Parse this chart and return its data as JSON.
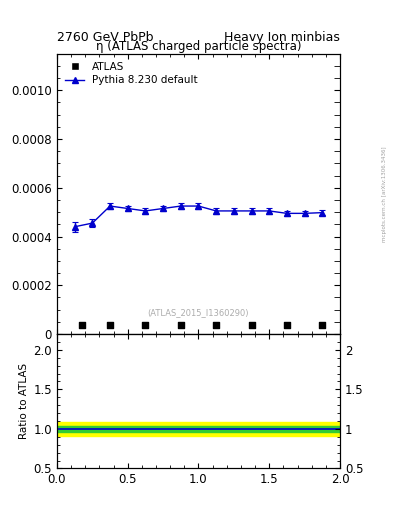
{
  "title_left": "2760 GeV PbPb",
  "title_right": "Heavy Ion minbias",
  "plot_title": "η (ATLAS charged particle spectra)",
  "watermark": "(ATLAS_2015_I1360290)",
  "side_label": "mcplots.cern.ch [arXiv:1306.3436]",
  "atlas_x": [
    0.175,
    0.375,
    0.625,
    0.875,
    1.125,
    1.375,
    1.625,
    1.875
  ],
  "atlas_y": [
    3.5e-05,
    3.5e-05,
    3.5e-05,
    3.5e-05,
    3.5e-05,
    3.5e-05,
    3.5e-05,
    3.5e-05
  ],
  "atlas_label": "ATLAS",
  "pythia_x": [
    0.125,
    0.25,
    0.375,
    0.5,
    0.625,
    0.75,
    0.875,
    1.0,
    1.125,
    1.25,
    1.375,
    1.5,
    1.625,
    1.75,
    1.875
  ],
  "pythia_y": [
    0.00044,
    0.000455,
    0.000525,
    0.000515,
    0.000505,
    0.000515,
    0.000525,
    0.000525,
    0.000505,
    0.000505,
    0.000505,
    0.000505,
    0.000495,
    0.000495,
    0.000498
  ],
  "pythia_yerr": [
    2e-05,
    1.5e-05,
    1.3e-05,
    1.2e-05,
    1.1e-05,
    1.1e-05,
    1.1e-05,
    1.1e-05,
    1.1e-05,
    1.1e-05,
    1.1e-05,
    1.1e-05,
    1.1e-05,
    1.1e-05,
    1.1e-05
  ],
  "pythia_label": "Pythia 8.230 default",
  "pythia_color": "#0000cc",
  "ratio_green_lo": 0.96,
  "ratio_green_hi": 1.04,
  "ratio_yellow_lo": 0.91,
  "ratio_yellow_hi": 1.09,
  "main_ylim": [
    0.0,
    0.00115
  ],
  "main_yticks": [
    0.0,
    0.0002,
    0.0004,
    0.0006,
    0.0008,
    0.001
  ],
  "ratio_ylim": [
    0.5,
    2.2
  ],
  "ratio_yticks": [
    0.5,
    1.0,
    1.5,
    2.0
  ],
  "xlim": [
    0.0,
    2.0
  ],
  "xticks": [
    0.0,
    0.5,
    1.0,
    1.5,
    2.0
  ],
  "bg_color": "#ffffff",
  "atlas_marker_color": "#000000"
}
